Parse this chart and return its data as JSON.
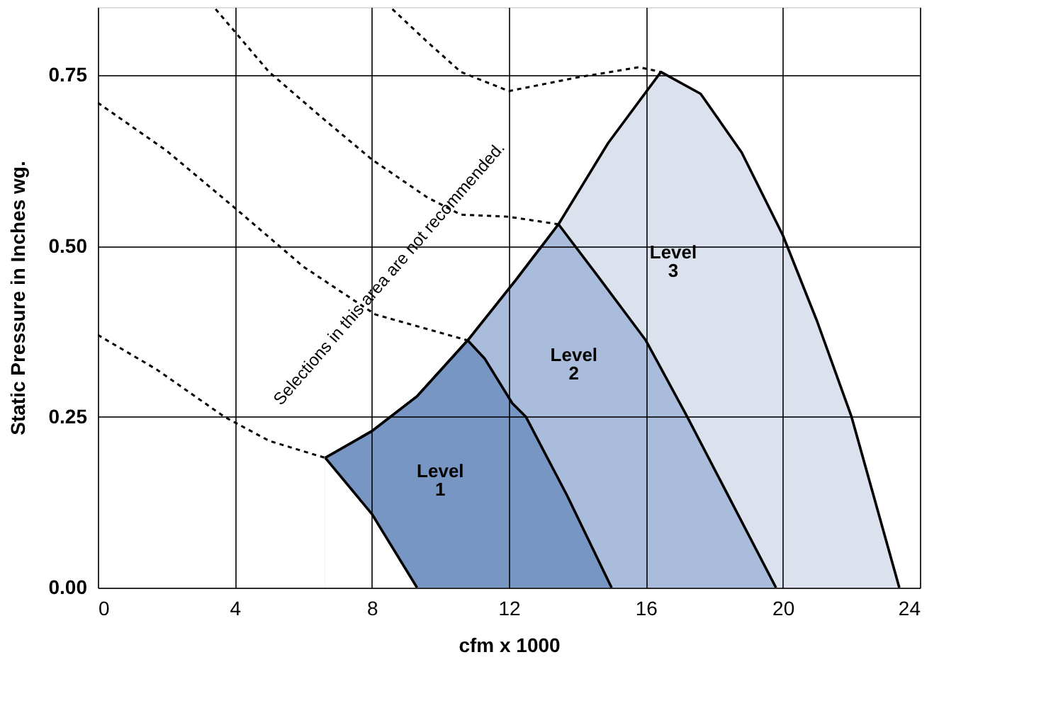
{
  "chart_data": {
    "type": "area",
    "xlabel": "cfm x 1000",
    "ylabel": "Static Pressure in Inches wg.",
    "xlim": [
      0,
      24
    ],
    "xticks": [
      0,
      4,
      8,
      12,
      16,
      20,
      24
    ],
    "ylim": [
      0,
      0.85
    ],
    "yticks": [
      {
        "value": 0,
        "label": "0.00"
      },
      {
        "value": 0.25,
        "label": "0.25"
      },
      {
        "value": 0.5,
        "label": "0.50"
      },
      {
        "value": 0.75,
        "label": "0.75"
      }
    ],
    "grid": true,
    "series": [
      {
        "color": "#dce1ee",
        "x": [
          6.64,
          8,
          9.32,
          10.8,
          12.2,
          13.45,
          14.9,
          16.44,
          17.6,
          18.8,
          20,
          21,
          22,
          23.4
        ],
        "values": [
          0.19,
          0.229,
          0.28,
          0.362,
          0.45,
          0.532,
          0.651,
          0.755,
          0.723,
          0.637,
          0.516,
          0.39,
          0.251,
          0
        ]
      },
      {
        "color": "#a9bcdb",
        "x": [
          6.64,
          8,
          9.32,
          10.8,
          12.2,
          13.45,
          14.6,
          16,
          17.2,
          19.8
        ],
        "values": [
          0.19,
          0.229,
          0.28,
          0.362,
          0.45,
          0.532,
          0.456,
          0.362,
          0.251,
          0
        ]
      },
      {
        "color": "#7896c4",
        "x": [
          6.64,
          8,
          9.32,
          10.8,
          11.3,
          12.1,
          12.5,
          13.7,
          15
        ],
        "values": [
          0.19,
          0.229,
          0.28,
          0.362,
          0.335,
          0.27,
          0.25,
          0.135,
          0
        ]
      },
      {
        "color": "#ffffff",
        "x": [
          6.64,
          8,
          9.32
        ],
        "values": [
          0.19,
          0.108,
          0
        ]
      },
      {
        "type": "line",
        "color": "#000000",
        "line_style": "dotted",
        "x": [
          0,
          1.7,
          3.7,
          5,
          6.64
        ],
        "values": [
          0.37,
          0.32,
          0.25,
          0.215,
          0.19
        ]
      },
      {
        "type": "line",
        "color": "#000000",
        "line_style": "dotted",
        "x": [
          0,
          2,
          4,
          6,
          8.1,
          10.8
        ],
        "values": [
          0.71,
          0.64,
          0.556,
          0.47,
          0.4,
          0.362
        ]
      },
      {
        "type": "line",
        "color": "#000000",
        "line_style": "dotted",
        "x": [
          3.44,
          5,
          6.5,
          8,
          9.6,
          10.6,
          12,
          13.45
        ],
        "values": [
          0.847,
          0.755,
          0.69,
          0.627,
          0.572,
          0.546,
          0.543,
          0.532
        ]
      },
      {
        "type": "line",
        "color": "#000000",
        "line_style": "dotted",
        "x": [
          8.6,
          9.6,
          10.6,
          12,
          14,
          15.8,
          16.44
        ],
        "values": [
          0.847,
          0.8,
          0.755,
          0.727,
          0.747,
          0.762,
          0.755
        ]
      }
    ],
    "annotations": [
      "Selections in this area are not recommended.",
      "Level 1",
      "Level 2",
      "Level 3"
    ]
  }
}
